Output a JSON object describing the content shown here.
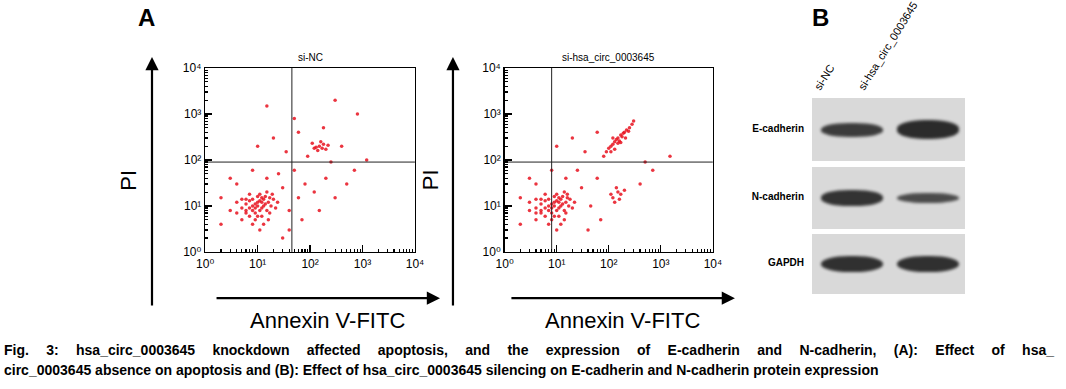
{
  "panel_labels": [
    "A",
    "B"
  ],
  "chart_data": [
    {
      "type": "scatter",
      "title": "si-NC",
      "x_label": "Annexin V-FITC",
      "y_label": "PI",
      "log": true,
      "marker": "dot",
      "color": "#e8121f",
      "xlim": [
        1,
        10000
      ],
      "ylim": [
        1,
        10000
      ],
      "xticks": [
        {
          "value": 1,
          "label": "10⁰"
        },
        {
          "value": 10,
          "label": "10¹"
        },
        {
          "value": 100,
          "label": "10²"
        },
        {
          "value": 1000,
          "label": "10³"
        },
        {
          "value": 10000,
          "label": "10⁴"
        }
      ],
      "yticks": [
        {
          "value": 1,
          "label": "10⁰"
        },
        {
          "value": 10,
          "label": "10¹"
        },
        {
          "value": 100,
          "label": "10²"
        },
        {
          "value": 1000,
          "label": "10³"
        },
        {
          "value": 10000,
          "label": "10⁴"
        }
      ],
      "gate": {
        "x": 45,
        "y": 90
      },
      "x": [
        6,
        8,
        10,
        12,
        7,
        9,
        11,
        14,
        5,
        8,
        10,
        13,
        16,
        6,
        4,
        9,
        12,
        15,
        18,
        7,
        11,
        5,
        8,
        13,
        20,
        17,
        10,
        9,
        12,
        7,
        6,
        14,
        19,
        22,
        4,
        3,
        16,
        11,
        7,
        15,
        24,
        8,
        10,
        12,
        6,
        9,
        13,
        11,
        5,
        17,
        30,
        40,
        60,
        80,
        120,
        200,
        300,
        50,
        25,
        15,
        8,
        4,
        3,
        70,
        150,
        500,
        35,
        20,
        60,
        10,
        90,
        250,
        400,
        700,
        40,
        2,
        2,
        30,
        180,
        1200,
        120,
        150,
        180,
        140,
        200,
        110,
        160,
        130,
        220,
        170,
        50,
        15,
        300,
        800
      ],
      "y": [
        8,
        10,
        12,
        9,
        6,
        7,
        8,
        11,
        9,
        14,
        16,
        14,
        12,
        11,
        7,
        5,
        6,
        8,
        10,
        13,
        18,
        5,
        4,
        4,
        14,
        7,
        10,
        11,
        12,
        9,
        14,
        16,
        18,
        9,
        12,
        8,
        5,
        3,
        18,
        20,
        12,
        8,
        6,
        15,
        7,
        9,
        10,
        13,
        14,
        15,
        25,
        8,
        15,
        30,
        20,
        40,
        15,
        60,
        50,
        40,
        60,
        30,
        40,
        5,
        8,
        30,
        150,
        300,
        400,
        200,
        120,
        90,
        200,
        60,
        3,
        15,
        4,
        2,
        500,
        100,
        180,
        200,
        220,
        160,
        170,
        230,
        250,
        190,
        210,
        180,
        800,
        1500,
        2000,
        1000
      ]
    },
    {
      "type": "scatter",
      "title": "si-hsa_circ_0003645",
      "x_label": "Annexin V-FITC",
      "y_label": "PI",
      "log": true,
      "marker": "dot",
      "color": "#e8121f",
      "xlim": [
        1,
        10000
      ],
      "ylim": [
        1,
        10000
      ],
      "xticks": [
        {
          "value": 1,
          "label": "10⁰"
        },
        {
          "value": 10,
          "label": "10¹"
        },
        {
          "value": 100,
          "label": "10²"
        },
        {
          "value": 1000,
          "label": "10³"
        },
        {
          "value": 10000,
          "label": "10⁴"
        }
      ],
      "yticks": [
        {
          "value": 1,
          "label": "10⁰"
        },
        {
          "value": 10,
          "label": "10¹"
        },
        {
          "value": 100,
          "label": "10²"
        },
        {
          "value": 1000,
          "label": "10³"
        },
        {
          "value": 10000,
          "label": "10⁴"
        }
      ],
      "gate": {
        "x": 8,
        "y": 90
      },
      "x": [
        5,
        7,
        9,
        11,
        6,
        8,
        10,
        13,
        4,
        7,
        9,
        12,
        15,
        5,
        4,
        8,
        11,
        14,
        17,
        6,
        10,
        4,
        7,
        12,
        18,
        15,
        9,
        8,
        11,
        6,
        5,
        13,
        16,
        20,
        3,
        3,
        14,
        10,
        6,
        14,
        22,
        7,
        9,
        11,
        5,
        8,
        12,
        10,
        4,
        16,
        90,
        110,
        130,
        150,
        170,
        200,
        100,
        120,
        140,
        160,
        180,
        220,
        250,
        80,
        130,
        110,
        190,
        150,
        210,
        240,
        280,
        300,
        120,
        170,
        120,
        150,
        130,
        170,
        140,
        110,
        160,
        200,
        30,
        45,
        60,
        25,
        15,
        8,
        4,
        3,
        70,
        400,
        35,
        20,
        60,
        10,
        500,
        700,
        2,
        2,
        1500,
        40
      ],
      "y": [
        8,
        10,
        12,
        9,
        6,
        7,
        8,
        11,
        9,
        14,
        16,
        14,
        12,
        11,
        7,
        5,
        6,
        8,
        10,
        13,
        18,
        5,
        4,
        4,
        14,
        7,
        10,
        11,
        12,
        9,
        14,
        16,
        18,
        9,
        12,
        8,
        5,
        3,
        18,
        20,
        12,
        8,
        6,
        15,
        7,
        9,
        10,
        13,
        14,
        15,
        150,
        200,
        250,
        300,
        350,
        400,
        180,
        220,
        280,
        260,
        320,
        450,
        500,
        120,
        170,
        150,
        380,
        230,
        300,
        420,
        600,
        700,
        300,
        240,
        15,
        20,
        12,
        18,
        25,
        18,
        14,
        22,
        25,
        10,
        40,
        60,
        40,
        60,
        30,
        40,
        5,
        30,
        150,
        300,
        400,
        200,
        90,
        60,
        15,
        4,
        120,
        3
      ]
    }
  ],
  "blot": {
    "columns": [
      "si-NC",
      "si-hsa_circ_0003645"
    ],
    "rows": [
      {
        "label": "E-cadherin",
        "intensity": [
          1.0,
          1.35
        ]
      },
      {
        "label": "N-cadherin",
        "intensity": [
          1.15,
          0.75
        ]
      },
      {
        "label": "GAPDH",
        "intensity": [
          1.2,
          1.2
        ]
      }
    ]
  },
  "caption": [
    "Fig. 3: hsa_circ_0003645 knockdown affected apoptosis, and the expression of E-cadherin and N-cadherin, (A): Effect of hsa_",
    "circ_0003645 absence on apoptosis and (B): Effect of hsa_circ_0003645 silencing on E-cadherin and N-cadherin protein expression"
  ]
}
